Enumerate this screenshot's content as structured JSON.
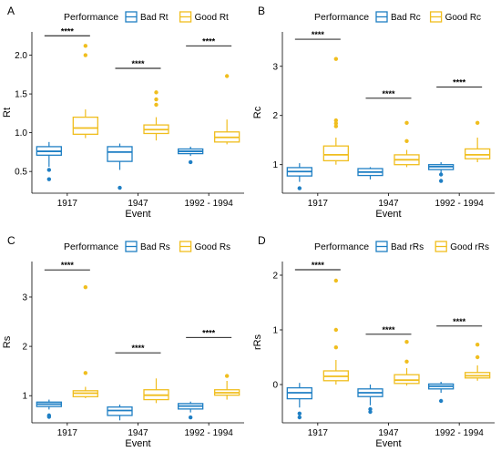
{
  "chart_data": [
    {
      "panel": "A",
      "type": "box",
      "ylabel": "Rt",
      "xlabel": "Event",
      "legend_title": "Performance",
      "legend_position": "top",
      "categories": [
        "1917",
        "1947",
        "1992 - 1994"
      ],
      "yticks": [
        "0.5",
        "1.0",
        "1.5",
        "2.0"
      ],
      "ytick_values": [
        0.5,
        1.0,
        1.5,
        2.0
      ],
      "ylim": [
        0.22,
        2.3
      ],
      "series": [
        {
          "name": "Bad Rt",
          "color": "#1f7fc4",
          "boxes": [
            {
              "min": 0.56,
              "q1": 0.71,
              "median": 0.76,
              "q3": 0.82,
              "max": 0.88,
              "outliers": [
                0.52,
                0.4
              ]
            },
            {
              "min": 0.52,
              "q1": 0.63,
              "median": 0.75,
              "q3": 0.82,
              "max": 0.86,
              "outliers": [
                0.29
              ]
            },
            {
              "min": 0.7,
              "q1": 0.73,
              "median": 0.76,
              "q3": 0.79,
              "max": 0.82,
              "outliers": [
                0.62
              ]
            }
          ]
        },
        {
          "name": "Good Rt",
          "color": "#f0be1e",
          "boxes": [
            {
              "min": 0.93,
              "q1": 0.98,
              "median": 1.06,
              "q3": 1.2,
              "max": 1.3,
              "outliers": [
                2.12,
                2.0
              ]
            },
            {
              "min": 0.9,
              "q1": 0.99,
              "median": 1.04,
              "q3": 1.1,
              "max": 1.2,
              "outliers": [
                1.52,
                1.43,
                1.36
              ]
            },
            {
              "min": 0.85,
              "q1": 0.88,
              "median": 0.94,
              "q3": 1.01,
              "max": 1.17,
              "outliers": [
                1.73
              ]
            }
          ]
        }
      ],
      "significance": [
        {
          "category": "1917",
          "label": "****",
          "y": 2.25
        },
        {
          "category": "1947",
          "label": "****",
          "y": 1.83
        },
        {
          "category": "1992 - 1994",
          "label": "****",
          "y": 2.12
        }
      ]
    },
    {
      "panel": "B",
      "type": "box",
      "ylabel": "Rc",
      "xlabel": "Event",
      "legend_title": "Performance",
      "legend_position": "top",
      "categories": [
        "1917",
        "1947",
        "1992 - 1994"
      ],
      "yticks": [
        "1",
        "2",
        "3"
      ],
      "ytick_values": [
        1,
        2,
        3
      ],
      "ylim": [
        0.42,
        3.7
      ],
      "series": [
        {
          "name": "Bad Rc",
          "color": "#1f7fc4",
          "boxes": [
            {
              "min": 0.65,
              "q1": 0.77,
              "median": 0.86,
              "q3": 0.94,
              "max": 1.03,
              "outliers": [
                0.52
              ]
            },
            {
              "min": 0.7,
              "q1": 0.78,
              "median": 0.85,
              "q3": 0.92,
              "max": 0.95,
              "outliers": []
            },
            {
              "min": 0.8,
              "q1": 0.9,
              "median": 0.96,
              "q3": 1.0,
              "max": 1.05,
              "outliers": [
                0.8,
                0.67
              ]
            }
          ]
        },
        {
          "name": "Good Rc",
          "color": "#f0be1e",
          "boxes": [
            {
              "min": 1.0,
              "q1": 1.08,
              "median": 1.2,
              "q3": 1.38,
              "max": 1.55,
              "outliers": [
                3.15,
                1.9,
                1.84,
                1.78
              ]
            },
            {
              "min": 0.95,
              "q1": 1.0,
              "median": 1.1,
              "q3": 1.2,
              "max": 1.3,
              "outliers": [
                1.85,
                1.48
              ]
            },
            {
              "min": 1.05,
              "q1": 1.12,
              "median": 1.2,
              "q3": 1.32,
              "max": 1.55,
              "outliers": [
                1.85
              ]
            }
          ]
        }
      ],
      "significance": [
        {
          "category": "1917",
          "label": "****",
          "y": 3.55
        },
        {
          "category": "1947",
          "label": "****",
          "y": 2.35
        },
        {
          "category": "1992 - 1994",
          "label": "****",
          "y": 2.58
        }
      ]
    },
    {
      "panel": "C",
      "type": "box",
      "ylabel": "Rs",
      "xlabel": "Event",
      "legend_title": "Performance",
      "legend_position": "top",
      "categories": [
        "1917",
        "1947",
        "1992 - 1994"
      ],
      "yticks": [
        "1",
        "2",
        "3"
      ],
      "ytick_values": [
        1,
        2,
        3
      ],
      "ylim": [
        0.45,
        3.72
      ],
      "series": [
        {
          "name": "Bad Rs",
          "color": "#1f7fc4",
          "boxes": [
            {
              "min": 0.72,
              "q1": 0.78,
              "median": 0.83,
              "q3": 0.87,
              "max": 0.92,
              "outliers": [
                0.6,
                0.57
              ]
            },
            {
              "min": 0.5,
              "q1": 0.6,
              "median": 0.7,
              "q3": 0.77,
              "max": 0.82,
              "outliers": []
            },
            {
              "min": 0.66,
              "q1": 0.73,
              "median": 0.79,
              "q3": 0.84,
              "max": 0.88,
              "outliers": [
                0.56
              ]
            }
          ]
        },
        {
          "name": "Good Rs",
          "color": "#f0be1e",
          "boxes": [
            {
              "min": 0.95,
              "q1": 0.98,
              "median": 1.05,
              "q3": 1.1,
              "max": 1.18,
              "outliers": [
                3.2,
                1.46
              ]
            },
            {
              "min": 0.85,
              "q1": 0.92,
              "median": 1.01,
              "q3": 1.12,
              "max": 1.35,
              "outliers": []
            },
            {
              "min": 0.92,
              "q1": 1.01,
              "median": 1.06,
              "q3": 1.12,
              "max": 1.3,
              "outliers": [
                1.4
              ]
            }
          ]
        }
      ],
      "significance": [
        {
          "category": "1917",
          "label": "****",
          "y": 3.55
        },
        {
          "category": "1947",
          "label": "****",
          "y": 1.87
        },
        {
          "category": "1992 - 1994",
          "label": "****",
          "y": 2.18
        }
      ]
    },
    {
      "panel": "D",
      "type": "box",
      "ylabel": "rRs",
      "xlabel": "Event",
      "legend_title": "Performance",
      "legend_position": "top",
      "categories": [
        "1917",
        "1947",
        "1992 - 1994"
      ],
      "yticks": [
        "0",
        "1",
        "2"
      ],
      "ytick_values": [
        0,
        1,
        2
      ],
      "ylim": [
        -0.7,
        2.25
      ],
      "series": [
        {
          "name": "Bad rRs",
          "color": "#1f7fc4",
          "boxes": [
            {
              "min": -0.42,
              "q1": -0.26,
              "median": -0.15,
              "q3": -0.06,
              "max": 0.03,
              "outliers": [
                -0.53,
                -0.6
              ]
            },
            {
              "min": -0.38,
              "q1": -0.22,
              "median": -0.15,
              "q3": -0.08,
              "max": 0.0,
              "outliers": [
                -0.45,
                -0.5
              ]
            },
            {
              "min": -0.15,
              "q1": -0.08,
              "median": -0.03,
              "q3": 0.01,
              "max": 0.05,
              "outliers": [
                -0.3
              ]
            }
          ]
        },
        {
          "name": "Good rRs",
          "color": "#f0be1e",
          "boxes": [
            {
              "min": 0.0,
              "q1": 0.07,
              "median": 0.15,
              "q3": 0.25,
              "max": 0.45,
              "outliers": [
                1.9,
                1.0,
                0.68
              ]
            },
            {
              "min": -0.02,
              "q1": 0.02,
              "median": 0.08,
              "q3": 0.18,
              "max": 0.3,
              "outliers": [
                0.78,
                0.42
              ]
            },
            {
              "min": 0.07,
              "q1": 0.12,
              "median": 0.16,
              "q3": 0.22,
              "max": 0.35,
              "outliers": [
                0.73,
                0.5
              ]
            }
          ]
        }
      ],
      "significance": [
        {
          "category": "1917",
          "label": "****",
          "y": 2.1
        },
        {
          "category": "1947",
          "label": "****",
          "y": 0.92
        },
        {
          "category": "1992 - 1994",
          "label": "****",
          "y": 1.07
        }
      ]
    }
  ]
}
